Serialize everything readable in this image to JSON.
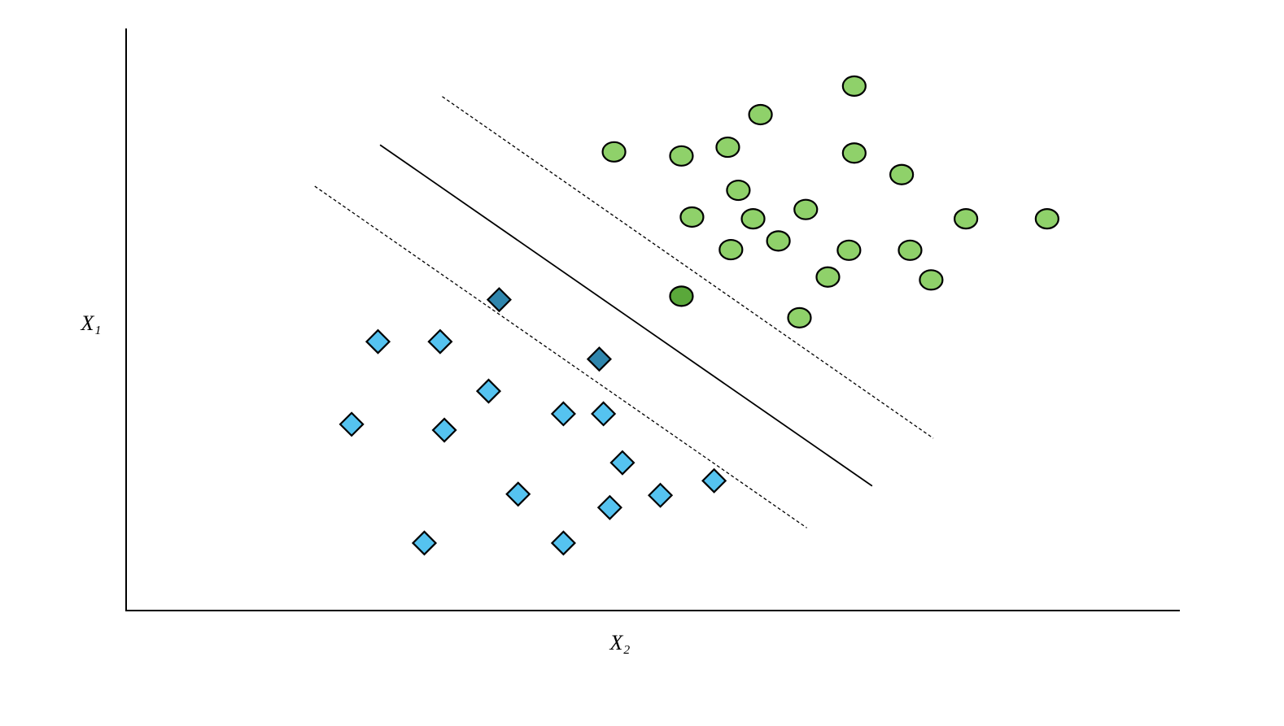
{
  "chart_data": {
    "type": "scatter",
    "x_label": "X₂",
    "y_label": "X₁",
    "xlim": [
      0,
      100
    ],
    "ylim": [
      0,
      100
    ],
    "series": [
      {
        "marker": "circle",
        "color": "#8fd16a",
        "x": [
          69.1,
          60.2,
          46.3,
          52.7,
          57.1,
          69.1,
          73.6,
          58.1,
          53.7,
          59.5,
          64.5,
          79.7,
          87.4,
          57.4,
          61.9,
          68.6,
          74.4,
          66.6,
          76.4,
          52.7,
          63.9
        ],
        "values": [
          90.1,
          85.2,
          78.8,
          78.1,
          79.6,
          78.6,
          74.9,
          72.2,
          67.6,
          67.3,
          68.9,
          67.3,
          67.3,
          62.0,
          63.5,
          61.9,
          61.9,
          57.3,
          56.8,
          54.0,
          50.3
        ],
        "colors": [
          "#8fd16a",
          "#8fd16a",
          "#8fd16a",
          "#8fd16a",
          "#8fd16a",
          "#8fd16a",
          "#8fd16a",
          "#8fd16a",
          "#8fd16a",
          "#8fd16a",
          "#8fd16a",
          "#8fd16a",
          "#8fd16a",
          "#8fd16a",
          "#8fd16a",
          "#8fd16a",
          "#8fd16a",
          "#8fd16a",
          "#8fd16a",
          "#5aa83a",
          "#8fd16a"
        ]
      },
      {
        "marker": "diamond",
        "color": "#55c3f0",
        "x": [
          35.4,
          23.9,
          29.8,
          44.9,
          34.4,
          21.4,
          30.2,
          41.5,
          45.3,
          47.1,
          55.8,
          37.2,
          50.7,
          45.9,
          28.3,
          41.5
        ],
        "values": [
          53.4,
          46.2,
          46.2,
          43.2,
          37.7,
          32.0,
          31.0,
          33.8,
          33.8,
          25.4,
          22.3,
          20.0,
          19.8,
          17.7,
          11.6,
          11.6
        ],
        "colors": [
          "#2f86ad",
          "#55c3f0",
          "#55c3f0",
          "#2f86ad",
          "#55c3f0",
          "#55c3f0",
          "#55c3f0",
          "#55c3f0",
          "#55c3f0",
          "#55c3f0",
          "#55c3f0",
          "#55c3f0",
          "#55c3f0",
          "#55c3f0",
          "#55c3f0",
          "#55c3f0"
        ]
      }
    ],
    "lines": [
      {
        "x": [
          24.1,
          70.8
        ],
        "values": [
          80.0,
          21.4
        ],
        "dashed": false
      },
      {
        "x": [
          30.0,
          76.6
        ],
        "values": [
          88.3,
          29.6
        ],
        "dashed": true
      },
      {
        "x": [
          17.9,
          64.6
        ],
        "values": [
          72.9,
          14.2
        ],
        "dashed": true
      }
    ]
  }
}
